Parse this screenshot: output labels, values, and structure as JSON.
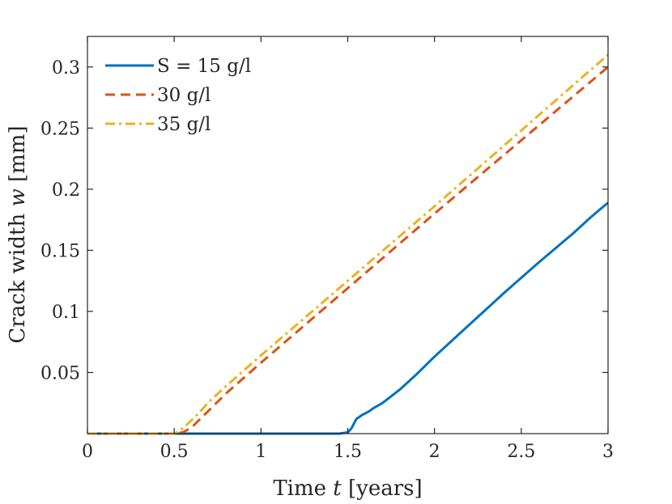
{
  "chart_data": {
    "type": "line",
    "title": "",
    "xlabel": "Time t [years]",
    "ylabel": "Crack width w [mm]",
    "xlabel_parts": {
      "prefix": "Time ",
      "var": "t",
      "suffix": " [years]"
    },
    "ylabel_parts": {
      "prefix": "Crack width ",
      "var": "w",
      "suffix": " [mm]"
    },
    "xlim": [
      0,
      3
    ],
    "ylim": [
      0,
      0.325
    ],
    "xticks": [
      0,
      0.5,
      1,
      1.5,
      2,
      2.5,
      3
    ],
    "xtick_labels": [
      "0",
      "0.5",
      "1",
      "1.5",
      "2",
      "2.5",
      "3"
    ],
    "yticks": [
      0.05,
      0.1,
      0.15,
      0.2,
      0.25,
      0.3
    ],
    "ytick_labels": [
      "0.05",
      "0.1",
      "0.15",
      "0.2",
      "0.25",
      "0.3"
    ],
    "grid": false,
    "legend_position": "top-left",
    "series": [
      {
        "name": "S = 15 g/l",
        "color": "#0072BD",
        "style": "solid",
        "x": [
          0,
          0.5,
          1.0,
          1.45,
          1.5,
          1.52,
          1.55,
          1.58,
          1.62,
          1.65,
          1.7,
          1.8,
          1.9,
          2.0,
          2.2,
          2.4,
          2.6,
          2.8,
          2.9,
          3.0
        ],
        "y": [
          0,
          0,
          0,
          0,
          0.001,
          0.004,
          0.012,
          0.015,
          0.018,
          0.021,
          0.025,
          0.036,
          0.049,
          0.063,
          0.089,
          0.115,
          0.14,
          0.164,
          0.177,
          0.189
        ]
      },
      {
        "name": "30 g/l",
        "color": "#D95319",
        "style": "dashed",
        "x": [
          0,
          0.5,
          0.55,
          0.6,
          0.65,
          0.7,
          0.8,
          1.0,
          1.5,
          2.0,
          2.5,
          3.0
        ],
        "y": [
          0,
          0,
          0.001,
          0.005,
          0.012,
          0.019,
          0.033,
          0.058,
          0.119,
          0.18,
          0.24,
          0.3
        ]
      },
      {
        "name": "35 g/l",
        "color": "#EDB120",
        "style": "dashdot",
        "x": [
          0,
          0.5,
          0.53,
          0.57,
          0.6,
          0.65,
          0.7,
          0.8,
          1.0,
          1.5,
          2.0,
          2.5,
          3.0
        ],
        "y": [
          0,
          0,
          0.002,
          0.007,
          0.011,
          0.018,
          0.026,
          0.039,
          0.064,
          0.125,
          0.186,
          0.248,
          0.31
        ]
      }
    ]
  }
}
